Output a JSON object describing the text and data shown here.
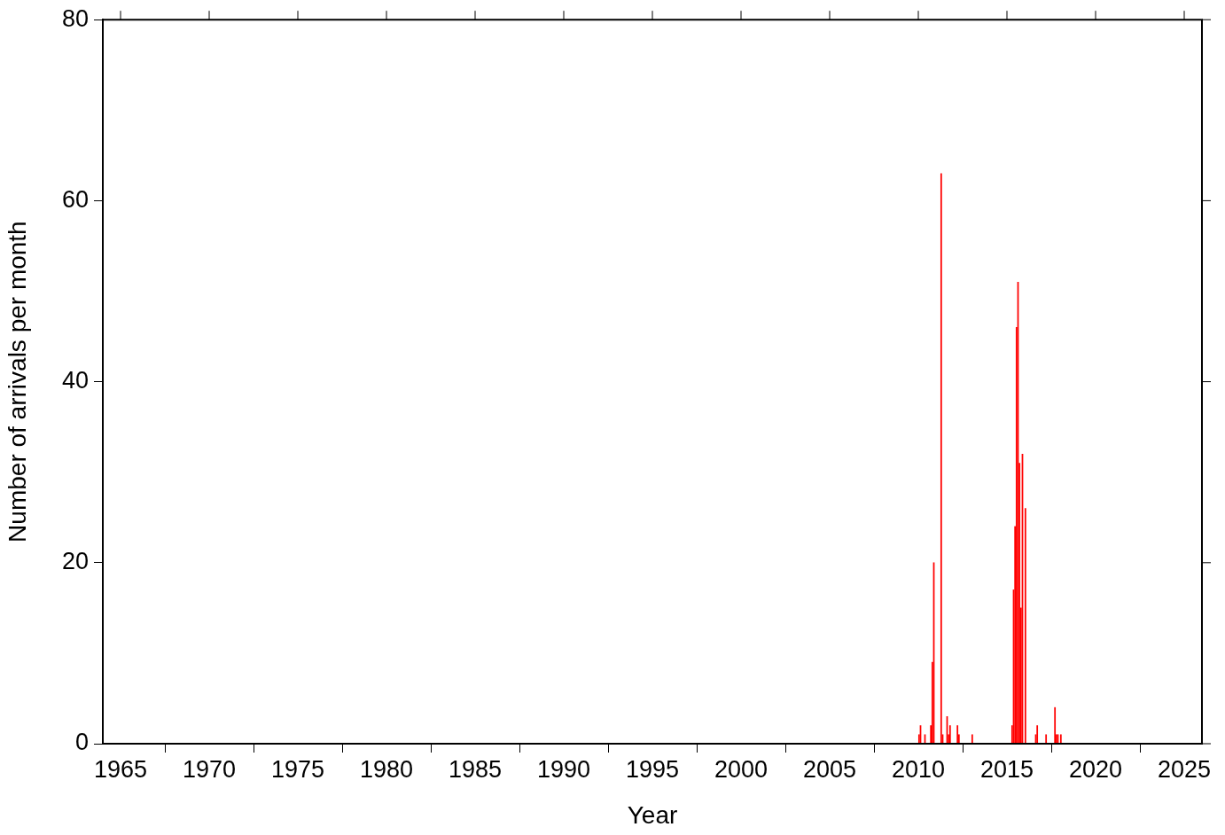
{
  "chart_data": {
    "type": "bar",
    "xlabel": "Year",
    "ylabel": "Number of arrivals per month",
    "x": [
      "2010-01",
      "2010-02",
      "2010-05",
      "2010-09",
      "2010-10",
      "2010-11",
      "2011-04",
      "2011-05",
      "2011-08",
      "2011-09",
      "2011-10",
      "2012-03",
      "2012-04",
      "2013-01",
      "2015-04",
      "2015-05",
      "2015-06",
      "2015-07",
      "2015-08",
      "2015-09",
      "2015-10",
      "2015-11",
      "2016-01",
      "2016-08",
      "2016-09",
      "2017-03",
      "2017-09",
      "2017-10",
      "2017-11",
      "2018-01"
    ],
    "values": [
      1,
      2,
      1,
      2,
      9,
      20,
      63,
      1,
      3,
      1,
      2,
      2,
      1,
      1,
      2,
      17,
      24,
      46,
      51,
      31,
      15,
      32,
      26,
      1,
      2,
      1,
      4,
      1,
      1,
      1
    ],
    "color": "#ff0000",
    "xlim": [
      "1964",
      "2026"
    ],
    "xticks": [
      "1965",
      "1970",
      "1975",
      "1980",
      "1985",
      "1990",
      "1995",
      "2000",
      "2005",
      "2010",
      "2015",
      "2020",
      "2025"
    ],
    "ylim": [
      0,
      80
    ],
    "yticks": [
      0,
      20,
      40,
      60,
      80
    ],
    "grid": false,
    "legend": false
  }
}
